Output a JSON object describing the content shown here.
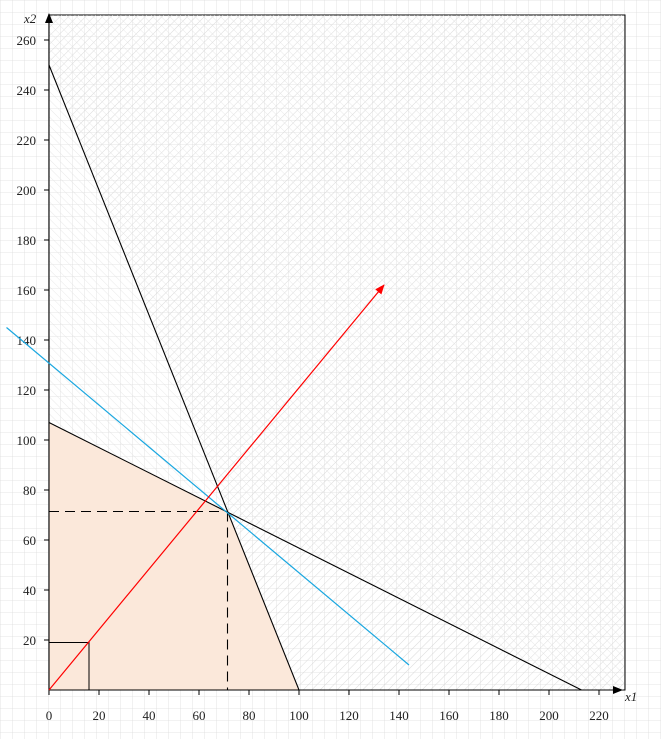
{
  "chart_data": {
    "type": "line",
    "title": "",
    "xlabel": "x1",
    "ylabel": "x2",
    "xlim": [
      0,
      230
    ],
    "ylim": [
      0,
      270
    ],
    "x_ticks": [
      0,
      20,
      40,
      60,
      80,
      100,
      120,
      140,
      160,
      180,
      200,
      220
    ],
    "y_ticks": [
      20,
      40,
      60,
      80,
      100,
      120,
      140,
      160,
      180,
      200,
      220,
      240,
      260
    ],
    "grid": "on (background square grid)",
    "colors": {
      "feasible_region": "#fbe8da",
      "constraint_lines": "#000000",
      "objective_line": "#1aa7e0",
      "gradient_vector": "#ff0000",
      "hatching": "#d7d7d7"
    },
    "feasible_region": {
      "vertices": [
        [
          0,
          0
        ],
        [
          100,
          0
        ],
        [
          71.4,
          71.4
        ],
        [
          0,
          107
        ]
      ]
    },
    "constraints": [
      {
        "points": [
          [
            0,
            250
          ],
          [
            100,
            0
          ]
        ]
      },
      {
        "points": [
          [
            0,
            107
          ],
          [
            213,
            0
          ]
        ]
      }
    ],
    "objective_line": {
      "points": [
        [
          -17,
          145
        ],
        [
          144,
          10
        ]
      ]
    },
    "gradient_vector": {
      "from": [
        0,
        0
      ],
      "to": [
        134,
        162
      ]
    },
    "optimum": {
      "point": [
        71.4,
        71.4
      ]
    },
    "reference_box": {
      "corner": [
        16,
        19
      ]
    }
  }
}
